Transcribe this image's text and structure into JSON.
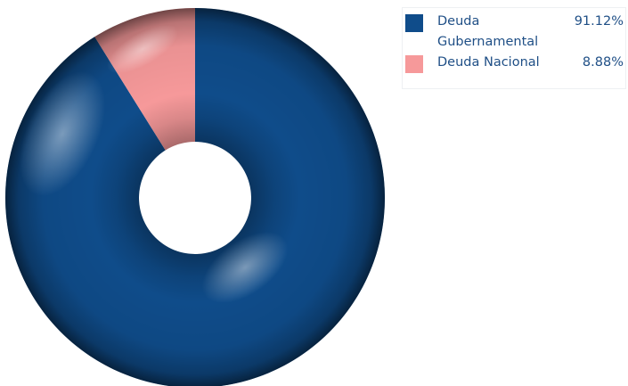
{
  "chart_data": {
    "type": "pie",
    "variant": "donut",
    "categories": [
      "Deuda Gubernamental",
      "Deuda Nacional"
    ],
    "values": [
      91.12,
      8.88
    ],
    "value_labels": [
      "91.12%",
      "8.88%"
    ],
    "colors": [
      "#0f4c8a",
      "#f6999a"
    ],
    "title": "",
    "legend_position": "top-right"
  }
}
